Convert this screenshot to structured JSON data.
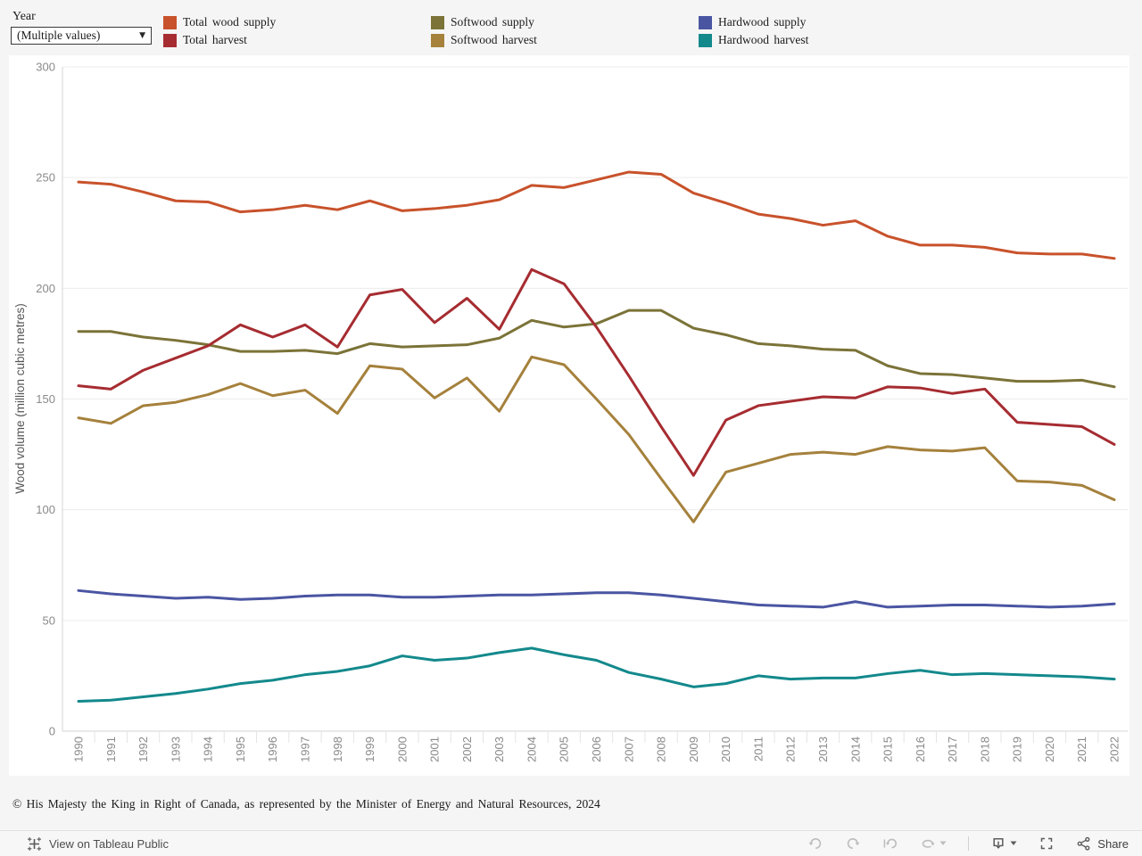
{
  "filter": {
    "label": "Year",
    "value": "(Multiple values)"
  },
  "legend": {
    "items": [
      {
        "label": "Total wood supply",
        "color": "#C8522B"
      },
      {
        "label": "Total harvest",
        "color": "#A62C31"
      },
      {
        "label": "Softwood supply",
        "color": "#7B7338"
      },
      {
        "label": "Softwood harvest",
        "color": "#A5813C"
      },
      {
        "label": "Hardwood supply",
        "color": "#4A55A2"
      },
      {
        "label": "Hardwood harvest",
        "color": "#13898C"
      }
    ]
  },
  "chart_data": {
    "type": "line",
    "x": [
      1990,
      1991,
      1992,
      1993,
      1994,
      1995,
      1996,
      1997,
      1998,
      1999,
      2000,
      2001,
      2002,
      2003,
      2004,
      2005,
      2006,
      2007,
      2008,
      2009,
      2010,
      2011,
      2012,
      2013,
      2014,
      2015,
      2016,
      2017,
      2018,
      2019,
      2020,
      2021,
      2022
    ],
    "ylabel": "Wood volume (million cubic metres)",
    "xlabel": "",
    "ylim": [
      0,
      300
    ],
    "yticks": [
      0,
      50,
      100,
      150,
      200,
      250,
      300
    ],
    "grid": "horizontal",
    "legend_position": "top",
    "series": [
      {
        "name": "Total wood supply",
        "color": "#C8522B",
        "values": [
          248,
          247,
          243.5,
          239.5,
          239,
          234.5,
          235.5,
          237.5,
          235.5,
          239.5,
          235,
          236,
          237.5,
          240,
          246.5,
          245.5,
          249,
          252.5,
          251.5,
          243,
          238.5,
          233.5,
          231.5,
          228.5,
          230.5,
          223.5,
          219.5,
          219.5,
          218.5,
          216,
          215.5,
          215.5,
          213.5
        ]
      },
      {
        "name": "Softwood supply",
        "color": "#7B7338",
        "values": [
          180.5,
          180.5,
          178,
          176.5,
          174.5,
          171.5,
          171.5,
          172,
          170.5,
          175,
          173.5,
          174,
          174.5,
          177.5,
          185.5,
          182.5,
          184,
          190,
          190,
          182,
          179,
          175,
          174,
          172.5,
          172,
          165,
          161.5,
          161,
          159.5,
          158,
          158,
          158.5,
          155.5
        ]
      },
      {
        "name": "Hardwood supply",
        "color": "#4A55A2",
        "values": [
          63.5,
          62,
          61,
          60,
          60.5,
          59.5,
          60,
          61,
          61.5,
          61.5,
          60.5,
          60.5,
          61,
          61.5,
          61.5,
          62,
          62.5,
          62.5,
          61.5,
          60,
          58.5,
          57,
          56.5,
          56,
          58.5,
          56,
          56.5,
          57,
          57,
          56.5,
          56,
          56.5,
          57.5
        ]
      },
      {
        "name": "Total harvest",
        "color": "#A62C31",
        "values": [
          156,
          154.5,
          163,
          168.5,
          174,
          183.5,
          178,
          183.5,
          173.5,
          197,
          199.5,
          184.5,
          195.5,
          181.5,
          208.5,
          202,
          182.5,
          160.5,
          137.5,
          115.5,
          140.5,
          147,
          149,
          151,
          150.5,
          155.5,
          155,
          152.5,
          154.5,
          139.5,
          138.5,
          137.5,
          129.5
        ]
      },
      {
        "name": "Softwood harvest",
        "color": "#A5813C",
        "values": [
          141.5,
          139,
          147,
          148.5,
          152,
          157,
          151.5,
          154,
          143.5,
          165,
          163.5,
          150.5,
          159.5,
          144.5,
          169,
          165.5,
          150,
          134,
          114,
          94.5,
          117,
          121,
          125,
          126,
          125,
          128.5,
          127,
          126.5,
          128,
          113,
          112.5,
          111,
          104.5
        ]
      },
      {
        "name": "Hardwood harvest",
        "color": "#13898C",
        "values": [
          13.5,
          14,
          15.5,
          17,
          19,
          21.5,
          23,
          25.5,
          27,
          29.5,
          34,
          32,
          33,
          35.5,
          37.5,
          34.5,
          32,
          26.5,
          23.5,
          20,
          21.5,
          25,
          23.5,
          24,
          24,
          26,
          27.5,
          25.5,
          26,
          25.5,
          25,
          24.5,
          23.5
        ]
      }
    ]
  },
  "footer": {
    "copyright": "© His Majesty the King in Right of Canada, as represented by the Minister of Energy and Natural Resources, 2024"
  },
  "toolbar": {
    "view_label": "View on Tableau Public",
    "share_label": "Share",
    "icons": [
      "tableau-logo",
      "undo",
      "redo",
      "revert",
      "refresh",
      "download",
      "fullscreen",
      "share"
    ]
  }
}
